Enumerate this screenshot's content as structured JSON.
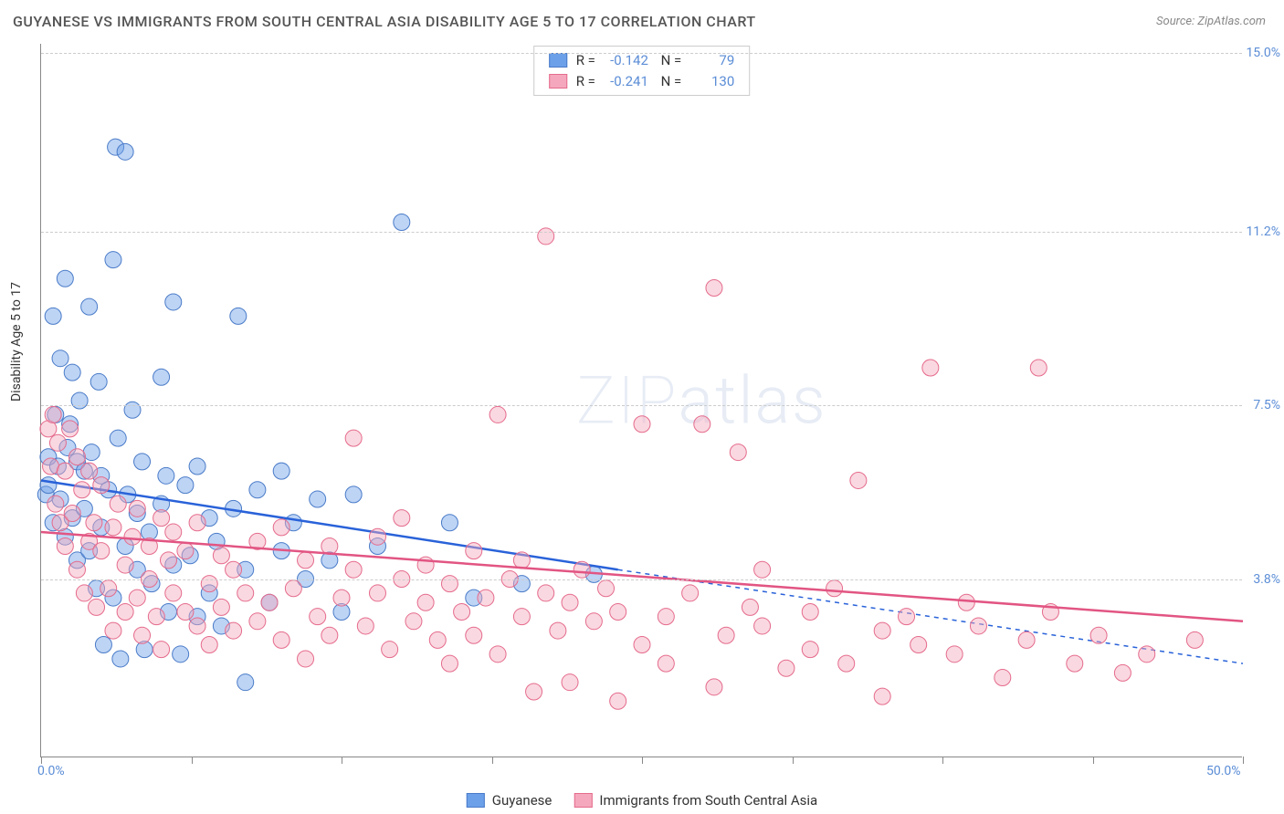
{
  "title": "GUYANESE VS IMMIGRANTS FROM SOUTH CENTRAL ASIA DISABILITY AGE 5 TO 17 CORRELATION CHART",
  "source": "Source: ZipAtlas.com",
  "y_axis_title": "Disability Age 5 to 17",
  "watermark": "ZIPatlas",
  "chart": {
    "type": "scatter",
    "background_color": "#ffffff",
    "grid_color": "#cccccc",
    "axis_color": "#888888",
    "xlim": [
      0,
      50
    ],
    "ylim": [
      0,
      15.2
    ],
    "x_ticks": [
      0,
      6.25,
      12.5,
      18.75,
      25,
      31.25,
      37.5,
      43.75,
      50
    ],
    "x_tick_labels": {
      "0": "0.0%",
      "50": "50.0%"
    },
    "y_gridlines": [
      3.8,
      7.5,
      11.2,
      15.0
    ],
    "y_tick_labels": [
      "3.8%",
      "7.5%",
      "11.2%",
      "15.0%"
    ],
    "label_color": "#5b8dd6",
    "label_fontsize": 14,
    "marker_radius": 9,
    "marker_opacity": 0.45,
    "series": [
      {
        "name": "Guyanese",
        "color": "#6ca0e8",
        "stroke": "#4a7bc8",
        "trend_color": "#2962d9",
        "R": "-0.142",
        "N": "79",
        "trend": {
          "x1": 0,
          "y1": 5.9,
          "x2": 24,
          "y2": 4.0,
          "x_dash_to": 50,
          "y_dash_to": 2.0
        },
        "points": [
          [
            0.2,
            5.6
          ],
          [
            0.3,
            6.4
          ],
          [
            0.3,
            5.8
          ],
          [
            0.5,
            9.4
          ],
          [
            0.5,
            5.0
          ],
          [
            0.6,
            7.3
          ],
          [
            0.7,
            6.2
          ],
          [
            0.8,
            8.5
          ],
          [
            0.8,
            5.5
          ],
          [
            1.0,
            10.2
          ],
          [
            1.0,
            4.7
          ],
          [
            1.1,
            6.6
          ],
          [
            1.2,
            7.1
          ],
          [
            1.3,
            5.1
          ],
          [
            1.3,
            8.2
          ],
          [
            1.5,
            6.3
          ],
          [
            1.5,
            4.2
          ],
          [
            1.6,
            7.6
          ],
          [
            1.8,
            6.1
          ],
          [
            1.8,
            5.3
          ],
          [
            2.0,
            9.6
          ],
          [
            2.0,
            4.4
          ],
          [
            2.1,
            6.5
          ],
          [
            2.3,
            3.6
          ],
          [
            2.4,
            8.0
          ],
          [
            2.5,
            6.0
          ],
          [
            2.5,
            4.9
          ],
          [
            2.6,
            2.4
          ],
          [
            2.8,
            5.7
          ],
          [
            3.0,
            10.6
          ],
          [
            3.0,
            3.4
          ],
          [
            3.1,
            13.0
          ],
          [
            3.2,
            6.8
          ],
          [
            3.3,
            2.1
          ],
          [
            3.5,
            12.9
          ],
          [
            3.5,
            4.5
          ],
          [
            3.6,
            5.6
          ],
          [
            3.8,
            7.4
          ],
          [
            4.0,
            4.0
          ],
          [
            4.0,
            5.2
          ],
          [
            4.2,
            6.3
          ],
          [
            4.3,
            2.3
          ],
          [
            4.5,
            4.8
          ],
          [
            4.6,
            3.7
          ],
          [
            5.0,
            8.1
          ],
          [
            5.0,
            5.4
          ],
          [
            5.2,
            6.0
          ],
          [
            5.3,
            3.1
          ],
          [
            5.5,
            4.1
          ],
          [
            5.5,
            9.7
          ],
          [
            5.8,
            2.2
          ],
          [
            6.0,
            5.8
          ],
          [
            6.2,
            4.3
          ],
          [
            6.5,
            3.0
          ],
          [
            6.5,
            6.2
          ],
          [
            7.0,
            5.1
          ],
          [
            7.0,
            3.5
          ],
          [
            7.3,
            4.6
          ],
          [
            7.5,
            2.8
          ],
          [
            8.0,
            5.3
          ],
          [
            8.2,
            9.4
          ],
          [
            8.5,
            4.0
          ],
          [
            8.5,
            1.6
          ],
          [
            9.0,
            5.7
          ],
          [
            9.5,
            3.3
          ],
          [
            10.0,
            6.1
          ],
          [
            10.0,
            4.4
          ],
          [
            10.5,
            5.0
          ],
          [
            11.0,
            3.8
          ],
          [
            11.5,
            5.5
          ],
          [
            12.0,
            4.2
          ],
          [
            12.5,
            3.1
          ],
          [
            13.0,
            5.6
          ],
          [
            14.0,
            4.5
          ],
          [
            15.0,
            11.4
          ],
          [
            17.0,
            5.0
          ],
          [
            18.0,
            3.4
          ],
          [
            20.0,
            3.7
          ],
          [
            23.0,
            3.9
          ]
        ]
      },
      {
        "name": "Immigrants from South Central Asia",
        "color": "#f5a8bd",
        "stroke": "#e56b8c",
        "trend_color": "#e25583",
        "R": "-0.241",
        "N": "130",
        "trend": {
          "x1": 0,
          "y1": 4.8,
          "x2": 50,
          "y2": 2.9,
          "x_dash_to": 50,
          "y_dash_to": 2.9
        },
        "points": [
          [
            0.3,
            7.0
          ],
          [
            0.4,
            6.2
          ],
          [
            0.5,
            7.3
          ],
          [
            0.6,
            5.4
          ],
          [
            0.7,
            6.7
          ],
          [
            0.8,
            5.0
          ],
          [
            1.0,
            6.1
          ],
          [
            1.0,
            4.5
          ],
          [
            1.2,
            7.0
          ],
          [
            1.3,
            5.2
          ],
          [
            1.5,
            6.4
          ],
          [
            1.5,
            4.0
          ],
          [
            1.7,
            5.7
          ],
          [
            1.8,
            3.5
          ],
          [
            2.0,
            6.1
          ],
          [
            2.0,
            4.6
          ],
          [
            2.2,
            5.0
          ],
          [
            2.3,
            3.2
          ],
          [
            2.5,
            4.4
          ],
          [
            2.5,
            5.8
          ],
          [
            2.8,
            3.6
          ],
          [
            3.0,
            4.9
          ],
          [
            3.0,
            2.7
          ],
          [
            3.2,
            5.4
          ],
          [
            3.5,
            4.1
          ],
          [
            3.5,
            3.1
          ],
          [
            3.8,
            4.7
          ],
          [
            4.0,
            5.3
          ],
          [
            4.0,
            3.4
          ],
          [
            4.2,
            2.6
          ],
          [
            4.5,
            4.5
          ],
          [
            4.5,
            3.8
          ],
          [
            4.8,
            3.0
          ],
          [
            5.0,
            5.1
          ],
          [
            5.0,
            2.3
          ],
          [
            5.3,
            4.2
          ],
          [
            5.5,
            3.5
          ],
          [
            5.5,
            4.8
          ],
          [
            6.0,
            3.1
          ],
          [
            6.0,
            4.4
          ],
          [
            6.5,
            2.8
          ],
          [
            6.5,
            5.0
          ],
          [
            7.0,
            3.7
          ],
          [
            7.0,
            2.4
          ],
          [
            7.5,
            4.3
          ],
          [
            7.5,
            3.2
          ],
          [
            8.0,
            4.0
          ],
          [
            8.0,
            2.7
          ],
          [
            8.5,
            3.5
          ],
          [
            9.0,
            4.6
          ],
          [
            9.0,
            2.9
          ],
          [
            9.5,
            3.3
          ],
          [
            10.0,
            4.9
          ],
          [
            10.0,
            2.5
          ],
          [
            10.5,
            3.6
          ],
          [
            11.0,
            4.2
          ],
          [
            11.0,
            2.1
          ],
          [
            11.5,
            3.0
          ],
          [
            12.0,
            4.5
          ],
          [
            12.0,
            2.6
          ],
          [
            12.5,
            3.4
          ],
          [
            13.0,
            4.0
          ],
          [
            13.0,
            6.8
          ],
          [
            13.5,
            2.8
          ],
          [
            14.0,
            3.5
          ],
          [
            14.0,
            4.7
          ],
          [
            14.5,
            2.3
          ],
          [
            15.0,
            3.8
          ],
          [
            15.0,
            5.1
          ],
          [
            15.5,
            2.9
          ],
          [
            16.0,
            3.3
          ],
          [
            16.0,
            4.1
          ],
          [
            16.5,
            2.5
          ],
          [
            17.0,
            3.7
          ],
          [
            17.0,
            2.0
          ],
          [
            17.5,
            3.1
          ],
          [
            18.0,
            4.4
          ],
          [
            18.0,
            2.6
          ],
          [
            18.5,
            3.4
          ],
          [
            19.0,
            7.3
          ],
          [
            19.0,
            2.2
          ],
          [
            19.5,
            3.8
          ],
          [
            20.0,
            3.0
          ],
          [
            20.0,
            4.2
          ],
          [
            20.5,
            1.4
          ],
          [
            21.0,
            3.5
          ],
          [
            21.0,
            11.1
          ],
          [
            21.5,
            2.7
          ],
          [
            22.0,
            3.3
          ],
          [
            22.0,
            1.6
          ],
          [
            22.5,
            4.0
          ],
          [
            23.0,
            2.9
          ],
          [
            23.5,
            3.6
          ],
          [
            24.0,
            1.2
          ],
          [
            24.0,
            3.1
          ],
          [
            25.0,
            2.4
          ],
          [
            25.0,
            7.1
          ],
          [
            26.0,
            3.0
          ],
          [
            26.0,
            2.0
          ],
          [
            27.0,
            3.5
          ],
          [
            27.5,
            7.1
          ],
          [
            28.0,
            1.5
          ],
          [
            28.0,
            10.0
          ],
          [
            28.5,
            2.6
          ],
          [
            29.0,
            6.5
          ],
          [
            29.5,
            3.2
          ],
          [
            30.0,
            2.8
          ],
          [
            30.0,
            4.0
          ],
          [
            31.0,
            1.9
          ],
          [
            32.0,
            3.1
          ],
          [
            32.0,
            2.3
          ],
          [
            33.0,
            3.6
          ],
          [
            33.5,
            2.0
          ],
          [
            34.0,
            5.9
          ],
          [
            35.0,
            2.7
          ],
          [
            35.0,
            1.3
          ],
          [
            36.0,
            3.0
          ],
          [
            36.5,
            2.4
          ],
          [
            37.0,
            8.3
          ],
          [
            38.0,
            2.2
          ],
          [
            38.5,
            3.3
          ],
          [
            39.0,
            2.8
          ],
          [
            40.0,
            1.7
          ],
          [
            41.0,
            2.5
          ],
          [
            41.5,
            8.3
          ],
          [
            42.0,
            3.1
          ],
          [
            43.0,
            2.0
          ],
          [
            44.0,
            2.6
          ],
          [
            45.0,
            1.8
          ],
          [
            46.0,
            2.2
          ],
          [
            48.0,
            2.5
          ]
        ]
      }
    ]
  },
  "legend": {
    "series1": "Guyanese",
    "series2": "Immigrants from South Central Asia"
  }
}
